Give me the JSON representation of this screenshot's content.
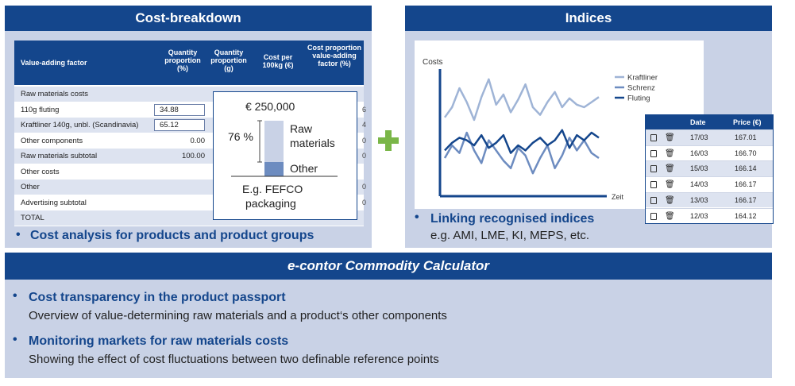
{
  "cost_panel": {
    "title": "Cost-breakdown",
    "headers": [
      "Value-adding factor",
      "Quantity proportion (%)",
      "Quantity proportion (g)",
      "Cost per 100kg (€)",
      "Cost proportion value-adding factor (%)"
    ],
    "rows": [
      {
        "label": "Raw materials costs",
        "value": "",
        "input": false
      },
      {
        "label": "110g fluting",
        "value": "34.88",
        "input": true,
        "cut": "6"
      },
      {
        "label": "Kraftliner 140g, unbl. (Scandinavia)",
        "value": "65.12",
        "input": true,
        "cut": "4"
      },
      {
        "label": "Other components",
        "value": "0.00",
        "input": false,
        "cut": "0"
      },
      {
        "label": "Raw materials subtotal",
        "value": "100.00",
        "input": false,
        "cut": "0"
      },
      {
        "label": "Other costs",
        "value": "",
        "input": false
      },
      {
        "label": "Other",
        "value": "",
        "input": false,
        "cut": "0"
      },
      {
        "label": "Advertising subtotal",
        "value": "",
        "input": false,
        "cut": "0"
      },
      {
        "label": "TOTAL",
        "value": "",
        "input": false
      }
    ],
    "popup": {
      "amount": "€ 250,000",
      "percent": "76 %",
      "raw_label_1": "Raw",
      "raw_label_2": "materials",
      "other_label": "Other",
      "example_1": "E.g. FEFCO",
      "example_2": "packaging"
    },
    "bullet": "Cost analysis for products and product groups"
  },
  "indices_panel": {
    "title": "Indices",
    "bullet": "Linking recognised indices",
    "sub": "e.g. AMI, LME, KI, MEPS, etc.",
    "price_table": {
      "headers": [
        "Date",
        "Price (€)"
      ],
      "rows": [
        {
          "date": "17/03",
          "price": "167.01"
        },
        {
          "date": "16/03",
          "price": "166.70"
        },
        {
          "date": "15/03",
          "price": "166.14"
        },
        {
          "date": "14/03",
          "price": "166.17"
        },
        {
          "date": "13/03",
          "price": "166.17"
        },
        {
          "date": "12/03",
          "price": "164.12"
        }
      ]
    }
  },
  "chart_data": {
    "type": "line",
    "ylabel": "Costs",
    "xlabel": "Zeit",
    "series": [
      {
        "name": "Kraftliner",
        "color": "#9fb4d6",
        "values": [
          0.62,
          0.7,
          0.85,
          0.74,
          0.6,
          0.78,
          0.92,
          0.72,
          0.8,
          0.66,
          0.76,
          0.88,
          0.7,
          0.64,
          0.74,
          0.82,
          0.7,
          0.77,
          0.72,
          0.7,
          0.74,
          0.78
        ]
      },
      {
        "name": "Schrenz",
        "color": "#6d8cc0",
        "values": [
          0.3,
          0.4,
          0.34,
          0.5,
          0.36,
          0.26,
          0.44,
          0.36,
          0.28,
          0.22,
          0.38,
          0.32,
          0.18,
          0.3,
          0.4,
          0.22,
          0.32,
          0.46,
          0.36,
          0.44,
          0.34,
          0.3
        ]
      },
      {
        "name": "Fluting",
        "color": "#14468c",
        "values": [
          0.36,
          0.42,
          0.46,
          0.44,
          0.4,
          0.48,
          0.38,
          0.42,
          0.48,
          0.34,
          0.4,
          0.36,
          0.42,
          0.46,
          0.4,
          0.44,
          0.52,
          0.38,
          0.48,
          0.44,
          0.5,
          0.46
        ]
      }
    ]
  },
  "calculator": {
    "title": "e-contor Commodity Calculator",
    "items": [
      {
        "head": "Cost transparency in the product passport",
        "sub": "Overview of value-determining raw materials and a product‘s other components"
      },
      {
        "head": "Monitoring markets for raw materials costs",
        "sub": "Showing the effect of cost fluctuations between two definable reference points"
      }
    ]
  },
  "colors": {
    "brand": "#14468c",
    "panel": "#c9d2e6",
    "plus": "#7ab648"
  }
}
